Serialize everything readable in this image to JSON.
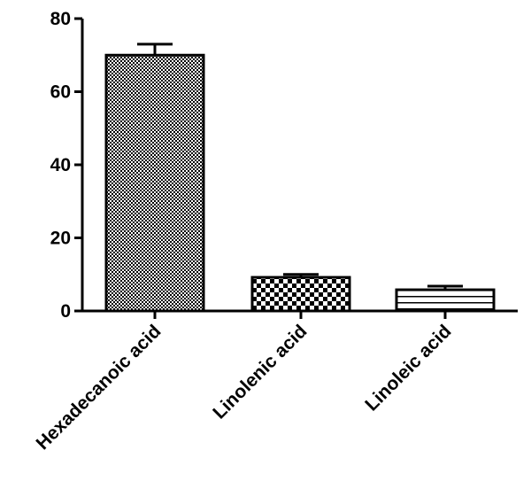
{
  "chart_data": {
    "type": "bar",
    "categories": [
      "Hexadecanoic acid",
      "Linolenic acid",
      "Linoleic acid"
    ],
    "values": [
      70,
      9.2,
      5.8
    ],
    "errors": [
      3,
      0.8,
      1
    ],
    "color": "#000000",
    "ylim": [
      0,
      80
    ],
    "yticks": [
      0,
      20,
      40,
      60,
      80
    ],
    "grid": false
  }
}
